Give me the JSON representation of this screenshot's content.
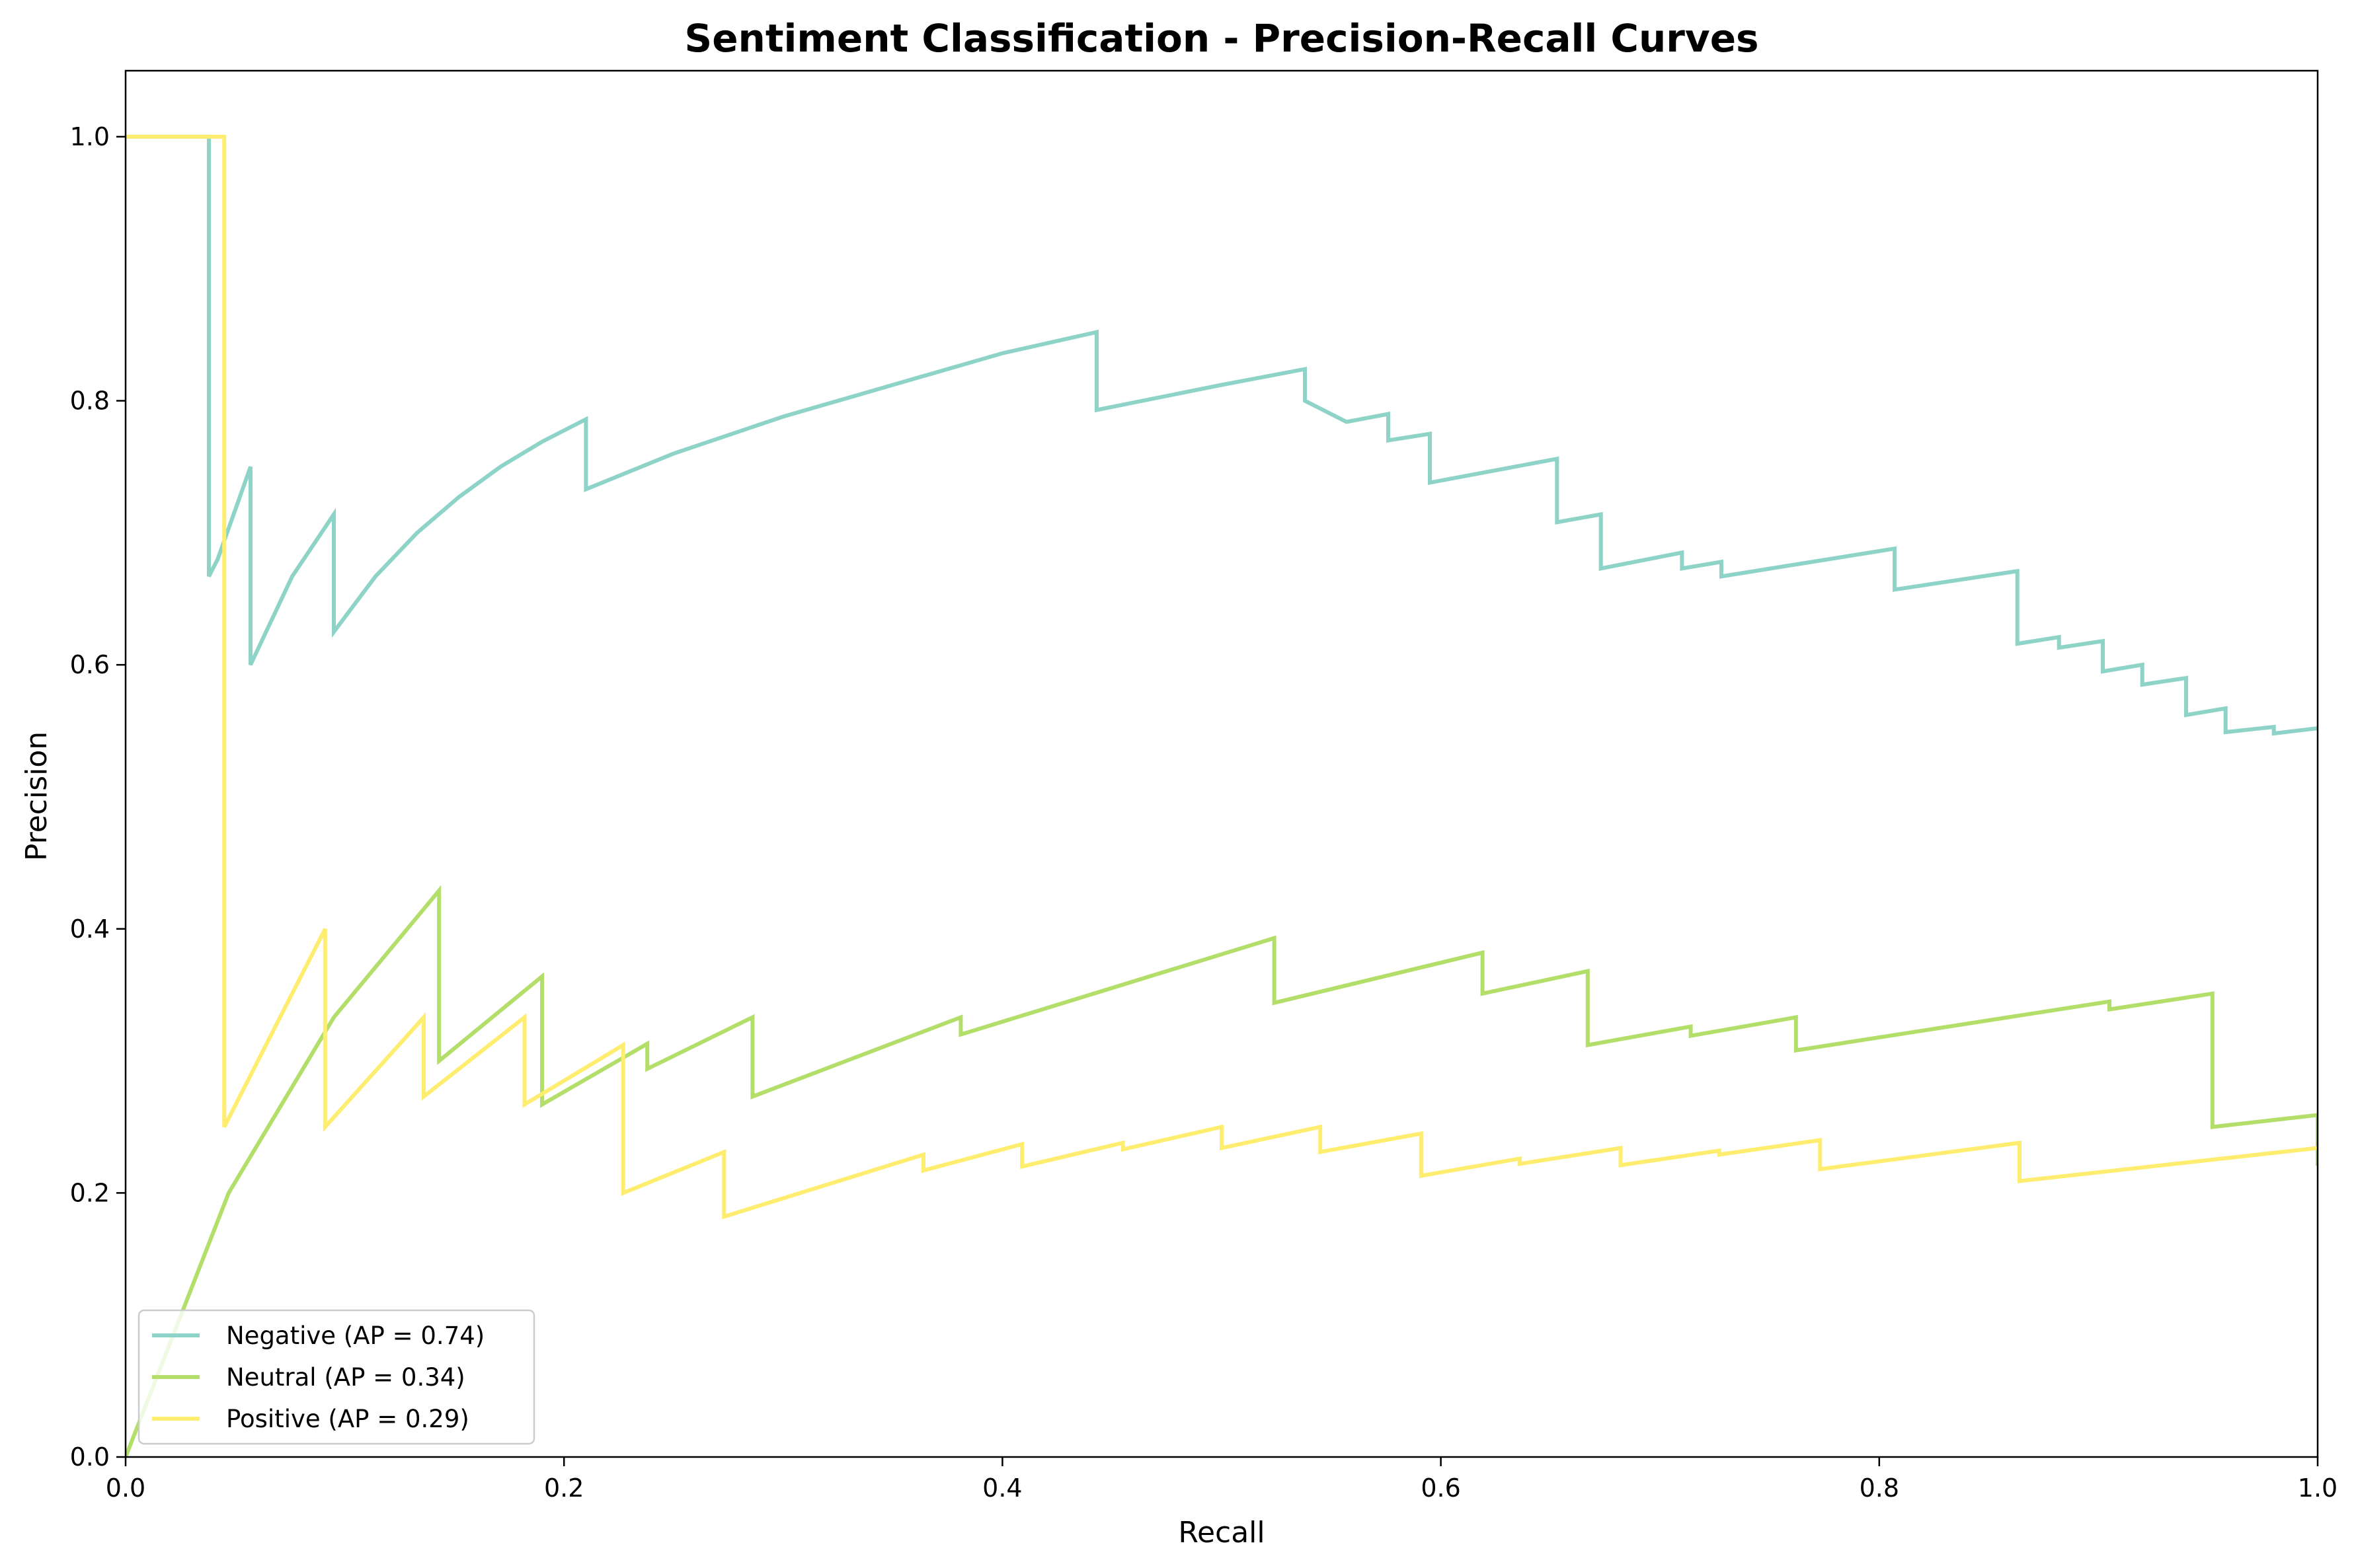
{
  "chart_data": {
    "type": "line",
    "title": "Sentiment Classification - Precision-Recall Curves",
    "xlabel": "Recall",
    "ylabel": "Precision",
    "xlim": [
      0.0,
      1.0
    ],
    "ylim": [
      0.0,
      1.05
    ],
    "xticks": [
      "0.0",
      "0.2",
      "0.4",
      "0.6",
      "0.8",
      "1.0"
    ],
    "yticks": [
      "0.0",
      "0.2",
      "0.4",
      "0.6",
      "0.8",
      "1.0"
    ],
    "grid": false,
    "legend_position": "lower-left",
    "series": [
      {
        "name": "Negative (AP = 0.74)",
        "color": "#8dd3c7",
        "x": [
          0.0,
          0.038,
          0.038,
          0.038,
          0.042,
          0.057,
          0.057,
          0.057,
          0.076,
          0.095,
          0.095,
          0.095,
          0.114,
          0.133,
          0.152,
          0.171,
          0.19,
          0.21,
          0.21,
          0.21,
          0.25,
          0.3,
          0.35,
          0.4,
          0.443,
          0.443,
          0.443,
          0.5,
          0.538,
          0.538,
          0.538,
          0.557,
          0.576,
          0.576,
          0.595,
          0.595,
          0.653,
          0.653,
          0.673,
          0.673,
          0.71,
          0.71,
          0.728,
          0.728,
          0.807,
          0.807,
          0.863,
          0.863,
          0.882,
          0.882,
          0.902,
          0.902,
          0.92,
          0.92,
          0.94,
          0.94,
          0.958,
          0.958,
          0.98,
          0.98,
          1.0
        ],
        "y": [
          1.0,
          1.0,
          1.0,
          0.667,
          0.68,
          0.75,
          0.75,
          0.6,
          0.667,
          0.714,
          0.714,
          0.625,
          0.667,
          0.7,
          0.727,
          0.75,
          0.769,
          0.786,
          0.786,
          0.733,
          0.76,
          0.788,
          0.812,
          0.836,
          0.852,
          0.852,
          0.793,
          0.812,
          0.824,
          0.824,
          0.8,
          0.784,
          0.79,
          0.77,
          0.775,
          0.738,
          0.756,
          0.708,
          0.714,
          0.673,
          0.685,
          0.673,
          0.678,
          0.667,
          0.688,
          0.657,
          0.671,
          0.616,
          0.621,
          0.613,
          0.618,
          0.595,
          0.6,
          0.585,
          0.59,
          0.562,
          0.567,
          0.549,
          0.553,
          0.548,
          0.552
        ]
      },
      {
        "name": "Neutral (AP = 0.34)",
        "color": "#b3de69",
        "x": [
          0.0,
          0.0,
          0.047,
          0.095,
          0.143,
          0.143,
          0.19,
          0.19,
          0.238,
          0.238,
          0.286,
          0.286,
          0.381,
          0.381,
          0.524,
          0.524,
          0.619,
          0.619,
          0.667,
          0.667,
          0.714,
          0.714,
          0.762,
          0.762,
          0.905,
          0.905,
          0.952,
          0.952,
          1.0,
          1.0
        ],
        "y": [
          0.0,
          0.0,
          0.2,
          0.333,
          0.429,
          0.3,
          0.364,
          0.267,
          0.313,
          0.294,
          0.333,
          0.273,
          0.333,
          0.32,
          0.393,
          0.344,
          0.382,
          0.351,
          0.368,
          0.312,
          0.326,
          0.319,
          0.333,
          0.308,
          0.345,
          0.339,
          0.351,
          0.25,
          0.259,
          0.222
        ]
      },
      {
        "name": "Positive (AP = 0.29)",
        "color": "#ffed6f",
        "x": [
          0.0,
          0.045,
          0.045,
          0.045,
          0.091,
          0.091,
          0.136,
          0.136,
          0.182,
          0.182,
          0.227,
          0.227,
          0.273,
          0.273,
          0.364,
          0.364,
          0.409,
          0.409,
          0.455,
          0.455,
          0.5,
          0.5,
          0.545,
          0.545,
          0.591,
          0.591,
          0.636,
          0.636,
          0.682,
          0.682,
          0.727,
          0.727,
          0.773,
          0.773,
          0.864,
          0.864,
          1.0
        ],
        "y": [
          1.0,
          1.0,
          1.0,
          0.25,
          0.4,
          0.25,
          0.333,
          0.273,
          0.333,
          0.267,
          0.312,
          0.2,
          0.231,
          0.182,
          0.229,
          0.217,
          0.237,
          0.22,
          0.238,
          0.233,
          0.25,
          0.234,
          0.25,
          0.231,
          0.245,
          0.213,
          0.226,
          0.222,
          0.234,
          0.221,
          0.232,
          0.229,
          0.24,
          0.218,
          0.238,
          0.209,
          0.234
        ]
      }
    ]
  }
}
